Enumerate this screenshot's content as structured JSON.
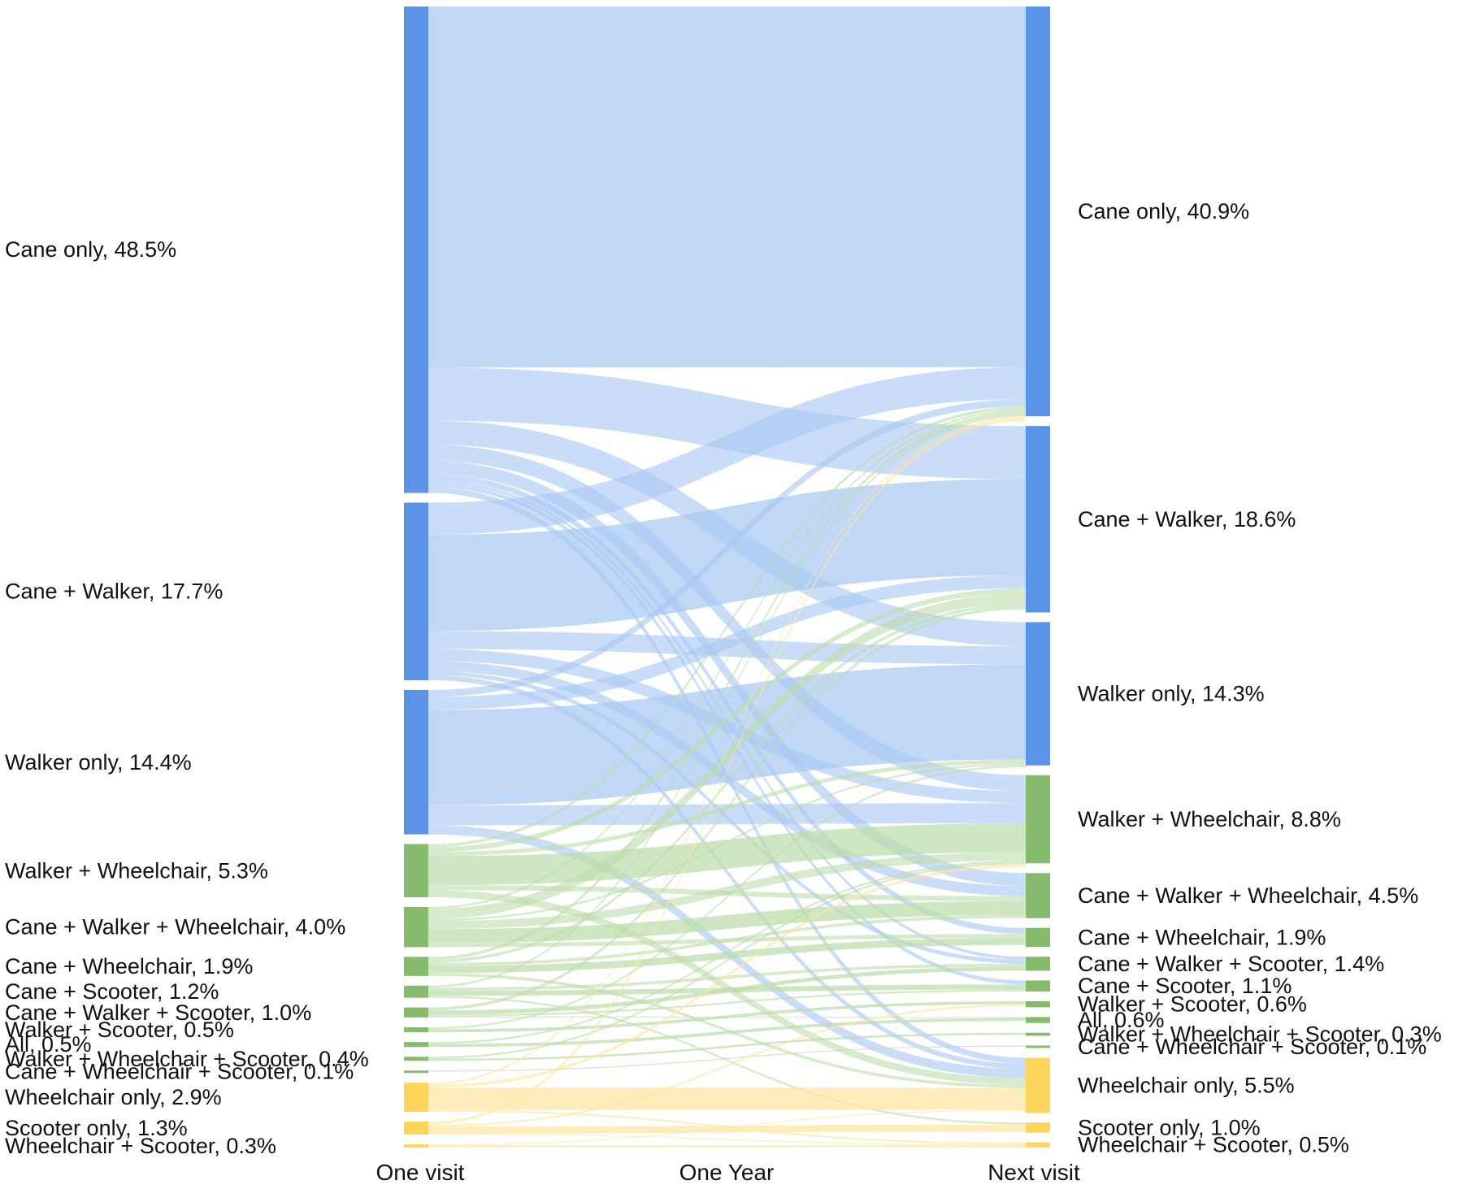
{
  "chart_data": {
    "type": "sankey",
    "title": "",
    "columns": [
      "One visit",
      "One Year",
      "Next visit"
    ],
    "colors": {
      "blue": "#5b93e6",
      "green": "#86bb6e",
      "yellow": "#fdd55a",
      "blue_link": "#a7c7f3",
      "green_link": "#bcdcaa",
      "yellow_link": "#fde6a0"
    },
    "left_nodes": [
      {
        "id": "cane",
        "label": "Cane only, 48.5%",
        "value": 48.5,
        "group": "blue"
      },
      {
        "id": "cw",
        "label": "Cane + Walker, 17.7%",
        "value": 17.7,
        "group": "blue"
      },
      {
        "id": "walker",
        "label": "Walker only, 14.4%",
        "value": 14.4,
        "group": "blue"
      },
      {
        "id": "ww",
        "label": "Walker + Wheelchair, 5.3%",
        "value": 5.3,
        "group": "green"
      },
      {
        "id": "cww",
        "label": "Cane + Walker + Wheelchair, 4.0%",
        "value": 4.0,
        "group": "green"
      },
      {
        "id": "cwh",
        "label": "Cane + Wheelchair, 1.9%",
        "value": 1.9,
        "group": "green"
      },
      {
        "id": "cs",
        "label": "Cane + Scooter, 1.2%",
        "value": 1.2,
        "group": "green"
      },
      {
        "id": "cws",
        "label": "Cane + Walker + Scooter, 1.0%",
        "value": 1.0,
        "group": "green"
      },
      {
        "id": "wsc",
        "label": "Walker + Scooter, 0.5%",
        "value": 0.5,
        "group": "green"
      },
      {
        "id": "all",
        "label": "All, 0.5%",
        "value": 0.5,
        "group": "green"
      },
      {
        "id": "wwhs",
        "label": "Walker + Wheelchair + Scooter, 0.4%",
        "value": 0.4,
        "group": "green"
      },
      {
        "id": "cwhs",
        "label": "Cane + Wheelchair + Scooter, 0.1%",
        "value": 0.1,
        "group": "green"
      },
      {
        "id": "wh",
        "label": "Wheelchair only, 2.9%",
        "value": 2.9,
        "group": "yellow"
      },
      {
        "id": "sc",
        "label": "Scooter only, 1.3%",
        "value": 1.3,
        "group": "yellow"
      },
      {
        "id": "whs",
        "label": "Wheelchair + Scooter, 0.3%",
        "value": 0.3,
        "group": "yellow"
      }
    ],
    "right_nodes": [
      {
        "id": "cane",
        "label": "Cane only, 40.9%",
        "value": 40.9,
        "group": "blue"
      },
      {
        "id": "cw",
        "label": "Cane + Walker, 18.6%",
        "value": 18.6,
        "group": "blue"
      },
      {
        "id": "walker",
        "label": "Walker only, 14.3%",
        "value": 14.3,
        "group": "blue"
      },
      {
        "id": "ww",
        "label": "Walker + Wheelchair, 8.8%",
        "value": 8.8,
        "group": "green"
      },
      {
        "id": "cww",
        "label": "Cane + Walker + Wheelchair, 4.5%",
        "value": 4.5,
        "group": "green"
      },
      {
        "id": "cwh",
        "label": "Cane + Wheelchair, 1.9%",
        "value": 1.9,
        "group": "green"
      },
      {
        "id": "cws",
        "label": "Cane + Walker + Scooter, 1.4%",
        "value": 1.4,
        "group": "green"
      },
      {
        "id": "cs",
        "label": "Cane + Scooter, 1.1%",
        "value": 1.1,
        "group": "green"
      },
      {
        "id": "wsc",
        "label": "Walker + Scooter, 0.6%",
        "value": 0.6,
        "group": "green"
      },
      {
        "id": "all",
        "label": "All, 0.6%",
        "value": 0.6,
        "group": "green"
      },
      {
        "id": "wwhs",
        "label": "Walker + Wheelchair + Scooter, 0.3%",
        "value": 0.3,
        "group": "green"
      },
      {
        "id": "cwhs",
        "label": "Cane + Wheelchair + Scooter, 0.1%",
        "value": 0.1,
        "group": "green"
      },
      {
        "id": "wh",
        "label": "Wheelchair only, 5.5%",
        "value": 5.5,
        "group": "yellow"
      },
      {
        "id": "sc",
        "label": "Scooter only, 1.0%",
        "value": 1.0,
        "group": "yellow"
      },
      {
        "id": "whs",
        "label": "Wheelchair + Scooter, 0.5%",
        "value": 0.5,
        "group": "yellow"
      }
    ],
    "links": [
      {
        "source": "cane",
        "target": "cane",
        "value": 36.0
      },
      {
        "source": "cane",
        "target": "cw",
        "value": 5.3
      },
      {
        "source": "cane",
        "target": "walker",
        "value": 2.4
      },
      {
        "source": "cane",
        "target": "ww",
        "value": 1.6
      },
      {
        "source": "cane",
        "target": "cww",
        "value": 1.3
      },
      {
        "source": "cane",
        "target": "cwh",
        "value": 0.6
      },
      {
        "source": "cane",
        "target": "cws",
        "value": 0.3
      },
      {
        "source": "cane",
        "target": "cs",
        "value": 0.4
      },
      {
        "source": "cane",
        "target": "wh",
        "value": 0.6
      },
      {
        "source": "cw",
        "target": "cane",
        "value": 3.2
      },
      {
        "source": "cw",
        "target": "cw",
        "value": 9.6
      },
      {
        "source": "cw",
        "target": "walker",
        "value": 1.8
      },
      {
        "source": "cw",
        "target": "ww",
        "value": 1.2
      },
      {
        "source": "cw",
        "target": "cww",
        "value": 1.0
      },
      {
        "source": "cw",
        "target": "cws",
        "value": 0.4
      },
      {
        "source": "cw",
        "target": "wh",
        "value": 0.5
      },
      {
        "source": "walker",
        "target": "cane",
        "value": 0.7
      },
      {
        "source": "walker",
        "target": "cw",
        "value": 1.3
      },
      {
        "source": "walker",
        "target": "walker",
        "value": 9.5
      },
      {
        "source": "walker",
        "target": "ww",
        "value": 2.0
      },
      {
        "source": "walker",
        "target": "wh",
        "value": 0.9
      },
      {
        "source": "ww",
        "target": "cane",
        "value": 0.3
      },
      {
        "source": "ww",
        "target": "cw",
        "value": 0.5
      },
      {
        "source": "ww",
        "target": "walker",
        "value": 0.4
      },
      {
        "source": "ww",
        "target": "ww",
        "value": 2.9
      },
      {
        "source": "ww",
        "target": "cww",
        "value": 0.5
      },
      {
        "source": "ww",
        "target": "wh",
        "value": 0.7
      },
      {
        "source": "cww",
        "target": "cane",
        "value": 0.2
      },
      {
        "source": "cww",
        "target": "cw",
        "value": 1.0
      },
      {
        "source": "cww",
        "target": "walker",
        "value": 0.2
      },
      {
        "source": "cww",
        "target": "ww",
        "value": 0.8
      },
      {
        "source": "cww",
        "target": "cww",
        "value": 1.4
      },
      {
        "source": "cww",
        "target": "cwh",
        "value": 0.4
      },
      {
        "source": "cwh",
        "target": "cane",
        "value": 0.3
      },
      {
        "source": "cwh",
        "target": "cw",
        "value": 0.3
      },
      {
        "source": "cwh",
        "target": "cwh",
        "value": 0.7
      },
      {
        "source": "cwh",
        "target": "cww",
        "value": 0.3
      },
      {
        "source": "cwh",
        "target": "wh",
        "value": 0.3
      },
      {
        "source": "cs",
        "target": "cane",
        "value": 0.2
      },
      {
        "source": "cs",
        "target": "cs",
        "value": 0.5
      },
      {
        "source": "cs",
        "target": "cws",
        "value": 0.3
      },
      {
        "source": "cs",
        "target": "sc",
        "value": 0.2
      },
      {
        "source": "cws",
        "target": "cw",
        "value": 0.3
      },
      {
        "source": "cws",
        "target": "cws",
        "value": 0.4
      },
      {
        "source": "cws",
        "target": "cs",
        "value": 0.2
      },
      {
        "source": "cws",
        "target": "all",
        "value": 0.1
      },
      {
        "source": "wsc",
        "target": "wsc",
        "value": 0.3
      },
      {
        "source": "wsc",
        "target": "walker",
        "value": 0.2
      },
      {
        "source": "all",
        "target": "all",
        "value": 0.3
      },
      {
        "source": "all",
        "target": "ww",
        "value": 0.2
      },
      {
        "source": "wwhs",
        "target": "wwhs",
        "value": 0.2
      },
      {
        "source": "wwhs",
        "target": "ww",
        "value": 0.2
      },
      {
        "source": "cwhs",
        "target": "cwhs",
        "value": 0.1
      },
      {
        "source": "wh",
        "target": "wh",
        "value": 2.2
      },
      {
        "source": "wh",
        "target": "ww",
        "value": 0.3
      },
      {
        "source": "wh",
        "target": "cane",
        "value": 0.2
      },
      {
        "source": "wh",
        "target": "whs",
        "value": 0.2
      },
      {
        "source": "sc",
        "target": "sc",
        "value": 0.7
      },
      {
        "source": "sc",
        "target": "cane",
        "value": 0.3
      },
      {
        "source": "sc",
        "target": "wsc",
        "value": 0.2
      },
      {
        "source": "sc",
        "target": "whs",
        "value": 0.1
      },
      {
        "source": "whs",
        "target": "whs",
        "value": 0.2
      },
      {
        "source": "whs",
        "target": "wh",
        "value": 0.1
      }
    ]
  }
}
